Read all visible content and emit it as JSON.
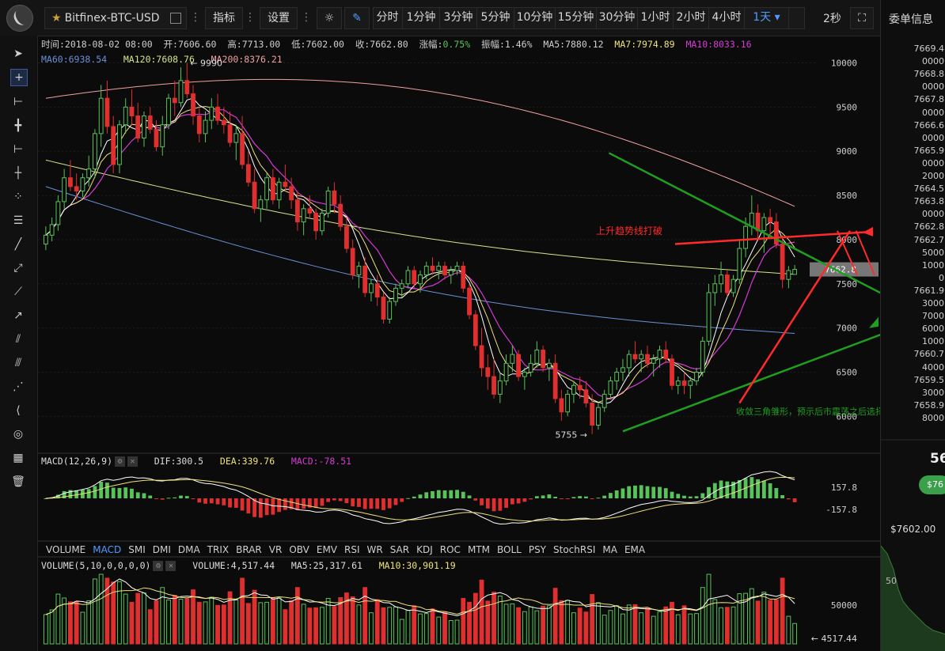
{
  "toolbar": {
    "symbol": "Bitfinex-BTC-USD",
    "indicators_label": "指标",
    "settings_label": "设置",
    "periods": [
      "分时",
      "1分钟",
      "3分钟",
      "5分钟",
      "10分钟",
      "15分钟",
      "30分钟",
      "1小时",
      "2小时",
      "4小时",
      "1天"
    ],
    "active_period": "1天",
    "refresh": "2秒"
  },
  "side_panel": {
    "title": "委单信息",
    "orderbook": [
      "7669.4",
      "0000",
      "7668.8",
      "0000",
      "7667.8",
      "0000",
      "7666.6",
      "0000",
      "7665.9",
      "0000",
      "2000",
      "7664.5",
      "7663.8",
      "0000",
      "7662.8",
      "7662.7",
      "5000",
      "1000",
      "0",
      "7661.9",
      "3000",
      "7000",
      "6000",
      "1000",
      "7660.7",
      "4000",
      "7659.5",
      "3000",
      "7658.9",
      "8000"
    ],
    "big_price": "56",
    "pill_text": "$76",
    "low_price": "$7602.00",
    "depth_axis_label": "50"
  },
  "info_bar": {
    "time": "时间:2018-08-02 08:00",
    "open": "开:7606.60",
    "high": "高:7713.00",
    "low": "低:7602.00",
    "close": "收:7662.80",
    "change_label": "涨幅:",
    "change_value": "0.75%",
    "amplitude": "振幅:1.46%",
    "ma5": "MA5:7880.12",
    "ma7": "MA7:7974.89",
    "ma10": "MA10:8033.16",
    "ma60": "MA60:6938.54",
    "ma120": "MA120:7608.76",
    "ma200": "MA200:8376.21"
  },
  "colors": {
    "up": "#58c35a",
    "down": "#e02f2f",
    "ma5": "#ffffff",
    "ma7": "#f0e27a",
    "ma10": "#d63ad6",
    "ma60": "#6b8fd8",
    "ma120": "#d7e38a",
    "ma200": "#f0a0a0",
    "annotation_red": "#ff2a2a",
    "annotation_green": "#1f9e1f"
  },
  "chart_data": [
    {
      "type": "candlestick",
      "price_axis_ticks": [
        10000,
        9500,
        9000,
        8500,
        8000,
        7500,
        7000,
        6500,
        6000
      ],
      "ylim": [
        5600,
        10300
      ],
      "last_price_label": "7662.8",
      "max_label": "← 9990",
      "min_label": "5755 →",
      "annotation_red": "上升趋势线打破",
      "annotation_green": "收敛三角雏形，预示后市震荡之后选择变盘",
      "ohlc": [
        [
          7950,
          8150,
          7880,
          8050
        ],
        [
          8050,
          8250,
          7980,
          8170
        ],
        [
          8170,
          8500,
          8100,
          8430
        ],
        [
          8430,
          8800,
          8350,
          8700
        ],
        [
          8700,
          8900,
          8550,
          8600
        ],
        [
          8600,
          8750,
          8450,
          8550
        ],
        [
          8550,
          8750,
          8480,
          8700
        ],
        [
          8700,
          8950,
          8600,
          8800
        ],
        [
          8800,
          9250,
          8700,
          9200
        ],
        [
          9200,
          9750,
          9050,
          9600
        ],
        [
          9600,
          9800,
          9200,
          9280
        ],
        [
          9280,
          9400,
          8750,
          8850
        ],
        [
          8850,
          9350,
          8750,
          9300
        ],
        [
          9300,
          9600,
          9200,
          9500
        ],
        [
          9500,
          9700,
          9300,
          9400
        ],
        [
          9400,
          9550,
          9100,
          9150
        ],
        [
          9150,
          9450,
          9050,
          9400
        ],
        [
          9400,
          9500,
          9200,
          9250
        ],
        [
          9250,
          9350,
          9000,
          9050
        ],
        [
          9050,
          9400,
          8950,
          9300
        ],
        [
          9300,
          9650,
          9250,
          9600
        ],
        [
          9600,
          9800,
          9400,
          9550
        ],
        [
          9550,
          9950,
          9500,
          9800
        ],
        [
          9800,
          10000,
          9600,
          9650
        ],
        [
          9650,
          9750,
          9300,
          9400
        ],
        [
          9400,
          9500,
          9100,
          9200
        ],
        [
          9200,
          9450,
          9100,
          9350
        ],
        [
          9350,
          9600,
          9250,
          9500
        ],
        [
          9500,
          9650,
          9300,
          9350
        ],
        [
          9350,
          9500,
          9200,
          9300
        ],
        [
          9300,
          9450,
          9050,
          9100
        ],
        [
          9100,
          9300,
          8900,
          9200
        ],
        [
          9200,
          9400,
          8800,
          8850
        ],
        [
          8850,
          9000,
          8600,
          8650
        ],
        [
          8650,
          8800,
          8300,
          8350
        ],
        [
          8350,
          8500,
          8200,
          8450
        ],
        [
          8450,
          8750,
          8350,
          8700
        ],
        [
          8700,
          8800,
          8400,
          8450
        ],
        [
          8450,
          8700,
          8350,
          8650
        ],
        [
          8650,
          8850,
          8550,
          8600
        ],
        [
          8600,
          8700,
          8350,
          8450
        ],
        [
          8450,
          8550,
          8100,
          8200
        ],
        [
          8200,
          8400,
          8050,
          8350
        ],
        [
          8350,
          8500,
          8250,
          8300
        ],
        [
          8300,
          8350,
          8000,
          8100
        ],
        [
          8100,
          8350,
          8050,
          8300
        ],
        [
          8300,
          8600,
          8250,
          8550
        ],
        [
          8550,
          8650,
          8300,
          8400
        ],
        [
          8400,
          8500,
          8100,
          8150
        ],
        [
          8150,
          8250,
          7850,
          7900
        ],
        [
          7900,
          8000,
          7550,
          7600
        ],
        [
          7600,
          7750,
          7450,
          7700
        ],
        [
          7700,
          7800,
          7350,
          7400
        ],
        [
          7400,
          7550,
          7300,
          7500
        ],
        [
          7500,
          7600,
          7250,
          7350
        ],
        [
          7350,
          7400,
          7050,
          7100
        ],
        [
          7100,
          7350,
          7050,
          7300
        ],
        [
          7300,
          7500,
          7250,
          7450
        ],
        [
          7450,
          7550,
          7350,
          7500
        ],
        [
          7500,
          7700,
          7450,
          7650
        ],
        [
          7650,
          7700,
          7450,
          7500
        ],
        [
          7500,
          7650,
          7400,
          7600
        ],
        [
          7600,
          7750,
          7550,
          7700
        ],
        [
          7700,
          7800,
          7600,
          7650
        ],
        [
          7650,
          7750,
          7550,
          7700
        ],
        [
          7700,
          7750,
          7550,
          7600
        ],
        [
          7600,
          7700,
          7500,
          7650
        ],
        [
          7650,
          7750,
          7600,
          7700
        ],
        [
          7700,
          7750,
          7400,
          7450
        ],
        [
          7450,
          7500,
          7100,
          7150
        ],
        [
          7150,
          7200,
          6750,
          6800
        ],
        [
          6800,
          7000,
          6450,
          6550
        ],
        [
          6550,
          6700,
          6300,
          6450
        ],
        [
          6450,
          6650,
          6200,
          6250
        ],
        [
          6250,
          6500,
          6150,
          6400
        ],
        [
          6400,
          6700,
          6350,
          6600
        ],
        [
          6600,
          6800,
          6500,
          6700
        ],
        [
          6700,
          6750,
          6400,
          6450
        ],
        [
          6450,
          6550,
          6300,
          6500
        ],
        [
          6500,
          6700,
          6450,
          6600
        ],
        [
          6600,
          6850,
          6550,
          6750
        ],
        [
          6750,
          6800,
          6500,
          6550
        ],
        [
          6550,
          6650,
          6400,
          6600
        ],
        [
          6600,
          6700,
          6150,
          6200
        ],
        [
          6200,
          6300,
          5950,
          6050
        ],
        [
          6050,
          6300,
          6000,
          6250
        ],
        [
          6250,
          6400,
          6150,
          6350
        ],
        [
          6350,
          6450,
          6200,
          6300
        ],
        [
          6300,
          6400,
          6100,
          6150
        ],
        [
          6150,
          6250,
          5800,
          5900
        ],
        [
          5900,
          6150,
          5850,
          6100
        ],
        [
          6100,
          6300,
          6050,
          6250
        ],
        [
          6250,
          6450,
          6200,
          6400
        ],
        [
          6400,
          6550,
          6300,
          6500
        ],
        [
          6500,
          6650,
          6400,
          6550
        ],
        [
          6550,
          6750,
          6450,
          6700
        ],
        [
          6700,
          6850,
          6600,
          6650
        ],
        [
          6650,
          6750,
          6500,
          6700
        ],
        [
          6700,
          6800,
          6550,
          6600
        ],
        [
          6600,
          6700,
          6450,
          6650
        ],
        [
          6650,
          6800,
          6550,
          6750
        ],
        [
          6750,
          6850,
          6600,
          6650
        ],
        [
          6650,
          6700,
          6300,
          6350
        ],
        [
          6350,
          6450,
          6250,
          6400
        ],
        [
          6400,
          6500,
          6250,
          6350
        ],
        [
          6350,
          6450,
          6200,
          6400
        ],
        [
          6400,
          6550,
          6350,
          6500
        ],
        [
          6500,
          6900,
          6450,
          6850
        ],
        [
          6850,
          7500,
          6800,
          7400
        ],
        [
          7400,
          7600,
          7250,
          7500
        ],
        [
          7500,
          7750,
          7400,
          7600
        ],
        [
          7600,
          7650,
          7350,
          7400
        ],
        [
          7400,
          7600,
          7350,
          7550
        ],
        [
          7550,
          8000,
          7500,
          7900
        ],
        [
          7900,
          8250,
          7800,
          8150
        ],
        [
          8150,
          8500,
          8050,
          8300
        ],
        [
          8300,
          8400,
          8000,
          8100
        ],
        [
          8100,
          8300,
          7850,
          8250
        ],
        [
          8250,
          8350,
          8050,
          8200
        ],
        [
          8200,
          8300,
          7900,
          7950
        ],
        [
          7950,
          8050,
          7450,
          7550
        ],
        [
          7550,
          7700,
          7450,
          7650
        ],
        [
          7606.6,
          7713,
          7602,
          7662.8
        ]
      ]
    },
    {
      "type": "macd",
      "title": "MACD(12,26,9)",
      "dif_label": "DIF:300.5",
      "dea_label": "DEA:339.76",
      "macd_label": "MACD:-78.51",
      "axis_ticks": [
        157.8,
        -157.8
      ]
    },
    {
      "type": "volume",
      "title": "VOLUME(5,10,0,0,0,0)",
      "volume_label": "VOLUME:4,517.44",
      "ma5_label": "MA5:25,317.61",
      "ma10_label": "MA10:30,901.19",
      "axis_ticks": [
        50000
      ],
      "last_label": "← 4517.44"
    }
  ],
  "indicator_tabs": [
    "VOLUME",
    "MACD",
    "SMI",
    "DMI",
    "DMA",
    "TRIX",
    "BRAR",
    "VR",
    "OBV",
    "EMV",
    "RSI",
    "WR",
    "SAR",
    "KDJ",
    "ROC",
    "MTM",
    "BOLL",
    "PSY",
    "StochRSI",
    "MA",
    "EMA"
  ],
  "selected_indicator_tab": "MACD"
}
